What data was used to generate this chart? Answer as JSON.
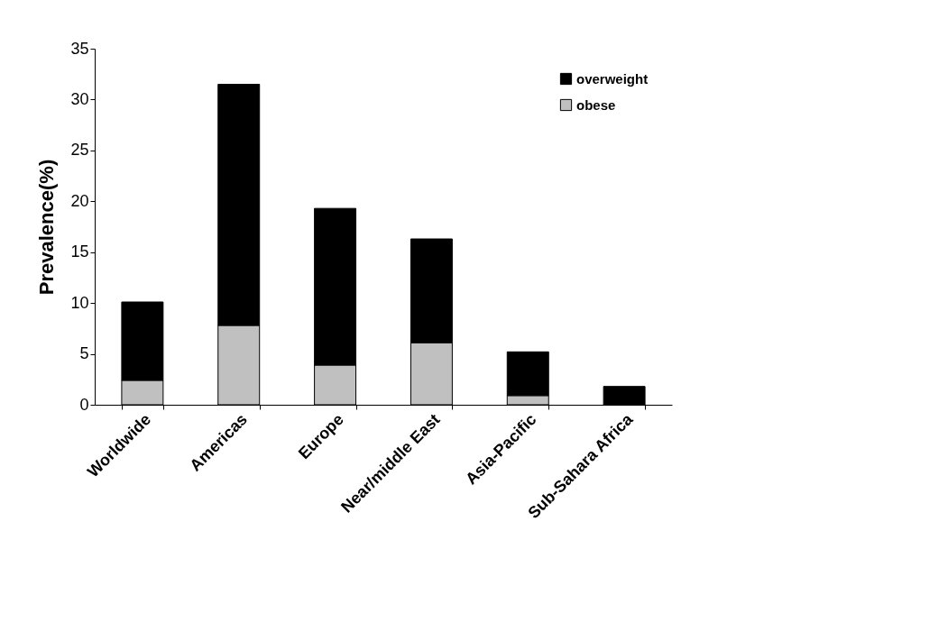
{
  "chart_data": {
    "type": "bar",
    "ylabel": "Prevalence(%)",
    "categories": [
      "Worldwide",
      "Americas",
      "Europe",
      "Near/middle East",
      "Asia-Pacific",
      "Sub-Sahara Africa"
    ],
    "stacked": true,
    "series": [
      {
        "name": "obese",
        "color": "#c0c0c0",
        "values": [
          2.4,
          7.8,
          3.9,
          6.1,
          0.9,
          0
        ]
      },
      {
        "name": "overweight",
        "color": "#000000",
        "values": [
          7.7,
          23.7,
          15.4,
          10.2,
          4.3,
          1.8
        ]
      }
    ],
    "ylim": [
      0,
      35
    ],
    "yticks": [
      0,
      5,
      10,
      15,
      20,
      25,
      30,
      35
    ],
    "grid": false,
    "legend": "top right"
  }
}
